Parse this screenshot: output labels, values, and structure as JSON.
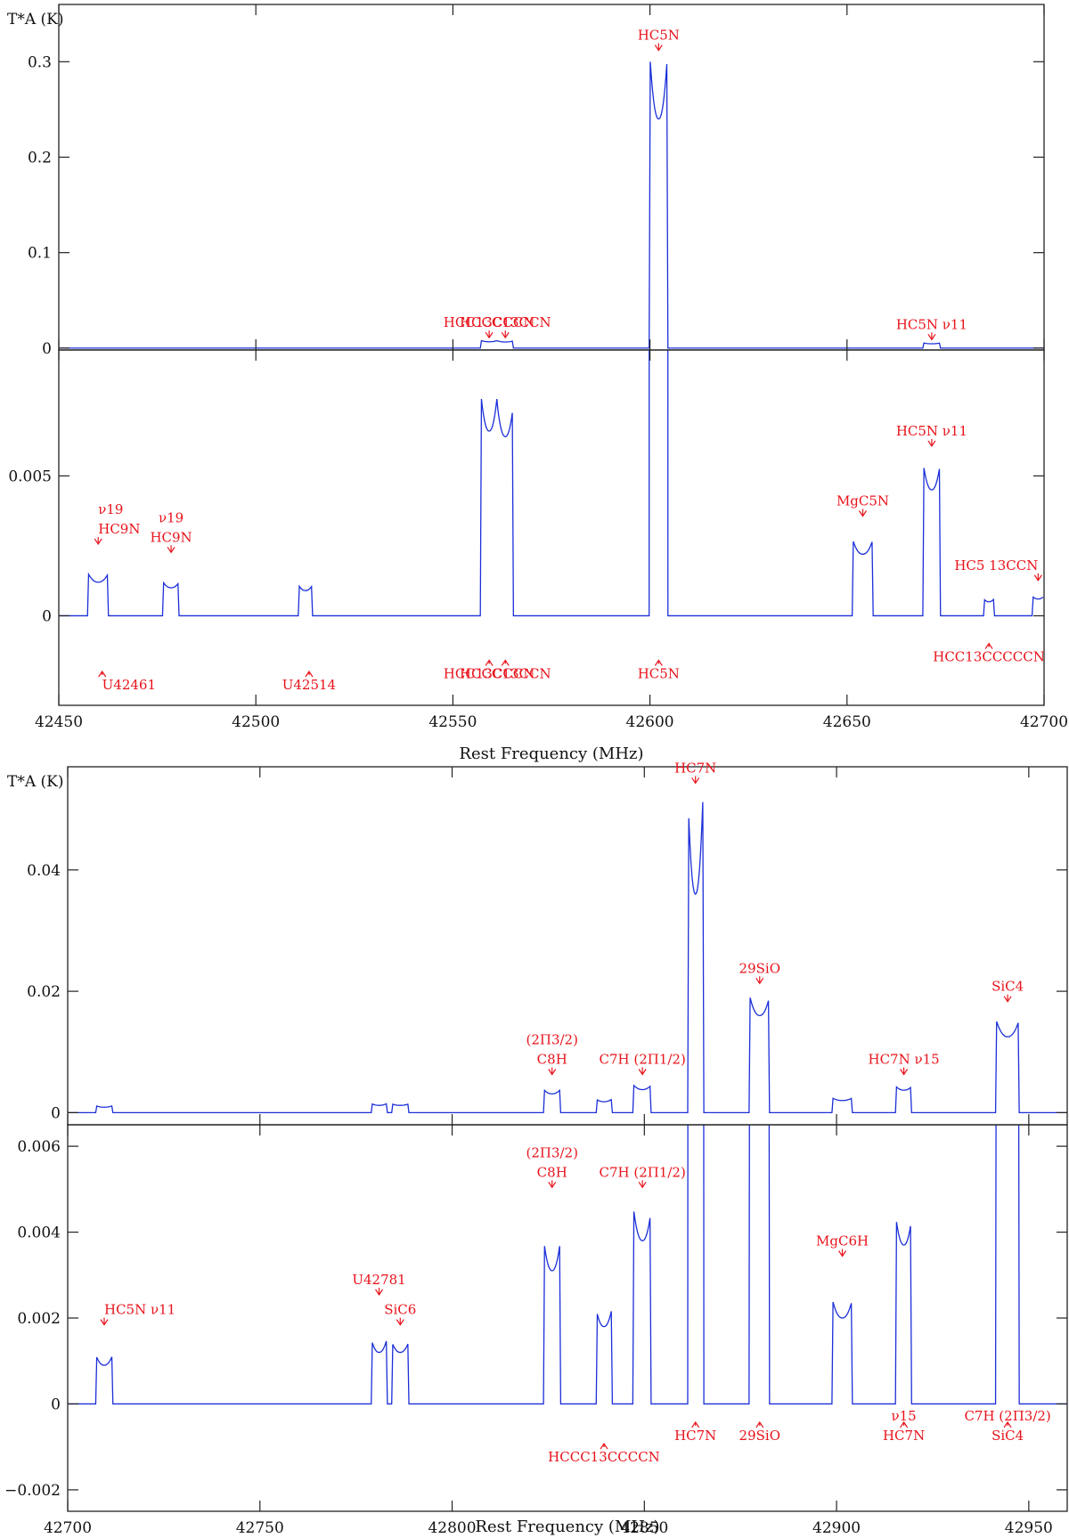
{
  "chart_data": [
    {
      "type": "line",
      "title": "",
      "xlabel": "Rest Frequency (MHz)",
      "ylabel": "T*A (K)",
      "xlim": [
        42450,
        42700
      ],
      "xticks": [
        "42450",
        "42500",
        "42550",
        "42600",
        "42650",
        "42700"
      ],
      "panels": [
        {
          "name": "upper",
          "ylim": [
            -0.002,
            0.36
          ],
          "yticks": [
            "0",
            "0.1",
            "0.2",
            "0.3"
          ],
          "lines": [
            {
              "name": "HC5N",
              "center": 42602.2,
              "width": 4.4,
              "peak": 0.305,
              "dip": 0.24
            },
            {
              "name": "HCC13CCCN",
              "center": 42559.2,
              "width": 4.0,
              "peak": 0.0078,
              "dip": 0.0066
            },
            {
              "name": "HCCC13CCN",
              "center": 42563.3,
              "width": 4.0,
              "peak": 0.0075,
              "dip": 0.0064
            },
            {
              "name": "HC5N v11",
              "center": 42671.5,
              "width": 4.0,
              "peak": 0.0053,
              "dip": 0.0045
            }
          ],
          "labels": [
            {
              "text": "HC5N",
              "x": 42602.2,
              "y": 0.31
            },
            {
              "text": "HCC13CCCN",
              "x": 42559.2,
              "y": 0.009
            },
            {
              "text": "HCCC13CCN",
              "x": 42563.3,
              "y": 0.009
            },
            {
              "text": "HC5N  ν11",
              "x": 42671.5,
              "y": 0.007
            }
          ]
        },
        {
          "name": "lower",
          "ylim": [
            -0.0032,
            0.0095
          ],
          "yticks": [
            "0",
            "0.005"
          ],
          "lines": [
            {
              "name": "HC9N v19",
              "center": 42460.0,
              "width": 5.0,
              "peak": 0.0015,
              "dip": 0.0012
            },
            {
              "name": "HC9N v19",
              "center": 42478.5,
              "width": 4.0,
              "peak": 0.0012,
              "dip": 0.001
            },
            {
              "name": "U42514",
              "center": 42512.6,
              "width": 3.5,
              "peak": 0.0011,
              "dip": 0.0009
            },
            {
              "name": "HCC13CCCN",
              "center": 42559.2,
              "width": 4.0,
              "peak": 0.0078,
              "dip": 0.0066
            },
            {
              "name": "HCCC13CCN",
              "center": 42563.3,
              "width": 4.0,
              "peak": 0.0075,
              "dip": 0.0064
            },
            {
              "name": "HC5N",
              "center": 42602.2,
              "width": 4.4,
              "peak": 0.305,
              "dip": 0.24
            },
            {
              "name": "MgC5N",
              "center": 42654.0,
              "width": 5.0,
              "peak": 0.0027,
              "dip": 0.0022
            },
            {
              "name": "HC5N v11",
              "center": 42671.5,
              "width": 4.0,
              "peak": 0.0053,
              "dip": 0.0045
            },
            {
              "name": "HCC13CCCCCN",
              "center": 42686.0,
              "width": 2.5,
              "peak": 0.0006,
              "dip": 0.0005
            },
            {
              "name": "HC5 13CCN",
              "center": 42698.5,
              "width": 3.0,
              "peak": 0.0007,
              "dip": 0.0006
            }
          ],
          "labels": [
            {
              "text": "HC9N",
              "x": 42460.0,
              "y": 0.0025
            },
            {
              "text": "ν19",
              "x": 42460.0,
              "y": 0.0025
            },
            {
              "text": "HC9N",
              "x": 42478.5,
              "y": 0.0022
            },
            {
              "text": "ν19",
              "x": 42478.5,
              "y": 0.0022
            },
            {
              "text": "U42461",
              "x": 42461.0,
              "y": -0.0018
            },
            {
              "text": "U42514",
              "x": 42513.5,
              "y": -0.0018
            },
            {
              "text": "HCC13CCCN",
              "x": 42559.2,
              "y": -0.0014
            },
            {
              "text": "HCCC13CCN",
              "x": 42563.3,
              "y": -0.0014
            },
            {
              "text": "HC5N",
              "x": 42602.2,
              "y": -0.0014
            },
            {
              "text": "MgC5N",
              "x": 42654.0,
              "y": 0.0035
            },
            {
              "text": "HC5N  ν11",
              "x": 42671.5,
              "y": 0.006
            },
            {
              "text": "HC5 13CCN",
              "x": 42698.5,
              "y": 0.0012
            },
            {
              "text": "HCC13CCCCCN",
              "x": 42686.0,
              "y": -0.0008
            }
          ]
        }
      ]
    },
    {
      "type": "line",
      "title": "",
      "xlabel": "Rest Frequency (MHz)",
      "ylabel": "T*A (K)",
      "xlim": [
        42700,
        42960
      ],
      "xticks": [
        "42700",
        "42750",
        "42800",
        "42850",
        "42900",
        "42950"
      ],
      "panels": [
        {
          "name": "upper",
          "ylim": [
            -0.002,
            0.057
          ],
          "yticks": [
            "0",
            "0.02",
            "0.04"
          ],
          "lines": [
            {
              "name": "HC5N v11",
              "center": 42709.5,
              "width": 4.0,
              "peak": 0.0011,
              "dip": 0.0009
            },
            {
              "name": "U42781",
              "center": 42781.0,
              "width": 4.0,
              "peak": 0.0015,
              "dip": 0.0012
            },
            {
              "name": "SiC6",
              "center": 42786.5,
              "width": 4.0,
              "peak": 0.0014,
              "dip": 0.0012
            },
            {
              "name": "C8H 2Π3/2",
              "center": 42826.0,
              "width": 4.0,
              "peak": 0.0037,
              "dip": 0.0031
            },
            {
              "name": "HCCC13CCCCN",
              "center": 42839.5,
              "width": 4.0,
              "peak": 0.0022,
              "dip": 0.0018
            },
            {
              "name": "C7H 2Π1/2",
              "center": 42849.5,
              "width": 4.5,
              "peak": 0.0045,
              "dip": 0.0038
            },
            {
              "name": "HC7N",
              "center": 42863.3,
              "width": 4.0,
              "peak": 0.053,
              "dip": 0.036
            },
            {
              "name": "29SiO",
              "center": 42880.0,
              "width": 5.0,
              "peak": 0.019,
              "dip": 0.016
            },
            {
              "name": "MgC6H",
              "center": 42901.5,
              "width": 5.0,
              "peak": 0.0024,
              "dip": 0.002
            },
            {
              "name": "HC7N v15",
              "center": 42917.5,
              "width": 4.0,
              "peak": 0.0043,
              "dip": 0.0037
            },
            {
              "name": "SiC4",
              "center": 42944.5,
              "width": 6.0,
              "peak": 0.0153,
              "dip": 0.0125
            }
          ],
          "labels": [
            {
              "text": "HC7N",
              "x": 42863.3,
              "y": 0.054
            },
            {
              "text": "29SiO",
              "x": 42880.0,
              "y": 0.021
            },
            {
              "text": "SiC4",
              "x": 42944.5,
              "y": 0.018
            },
            {
              "text": "HC7N  ν15",
              "x": 42917.5,
              "y": 0.006
            },
            {
              "text": "C8H",
              "x": 42826.0,
              "y": 0.006
            },
            {
              "text": "(2Π3/2)",
              "x": 42826.0,
              "y": 0.006
            },
            {
              "text": "C7H  (2Π1/2)",
              "x": 42849.5,
              "y": 0.006
            }
          ]
        },
        {
          "name": "lower",
          "ylim": [
            -0.0025,
            0.0065
          ],
          "yticks": [
            "-0.002",
            "0",
            "0.002",
            "0.004",
            "0.006"
          ],
          "lines": [
            {
              "name": "HC5N v11",
              "center": 42709.5,
              "width": 4.0,
              "peak": 0.0011,
              "dip": 0.0009
            },
            {
              "name": "U42781",
              "center": 42781.0,
              "width": 4.0,
              "peak": 0.0015,
              "dip": 0.0012
            },
            {
              "name": "SiC6",
              "center": 42786.5,
              "width": 4.0,
              "peak": 0.0014,
              "dip": 0.0012
            },
            {
              "name": "C8H 2Π3/2",
              "center": 42826.0,
              "width": 4.0,
              "peak": 0.0037,
              "dip": 0.0031
            },
            {
              "name": "HCCC13CCCCN",
              "center": 42839.5,
              "width": 4.0,
              "peak": 0.0022,
              "dip": 0.0018
            },
            {
              "name": "C7H 2Π1/2",
              "center": 42849.5,
              "width": 4.5,
              "peak": 0.0045,
              "dip": 0.0038
            },
            {
              "name": "HC7N",
              "center": 42863.3,
              "width": 4.0,
              "peak": 0.053,
              "dip": 0.036
            },
            {
              "name": "29SiO",
              "center": 42880.0,
              "width": 5.0,
              "peak": 0.019,
              "dip": 0.016
            },
            {
              "name": "MgC6H",
              "center": 42901.5,
              "width": 5.0,
              "peak": 0.0024,
              "dip": 0.002
            },
            {
              "name": "HC7N v15",
              "center": 42917.5,
              "width": 4.0,
              "peak": 0.0043,
              "dip": 0.0037
            },
            {
              "name": "SiC4",
              "center": 42944.5,
              "width": 6.0,
              "peak": 0.0153,
              "dip": 0.0125
            }
          ],
          "labels": [
            {
              "text": "HC5N  ν11",
              "x": 42709.5,
              "y": 0.0018
            },
            {
              "text": "U42781",
              "x": 42781.0,
              "y": 0.0025
            },
            {
              "text": "SiC6",
              "x": 42786.5,
              "y": 0.0018
            },
            {
              "text": "C8H",
              "x": 42826.0,
              "y": 0.005
            },
            {
              "text": "(2Π3/2)",
              "x": 42826.0,
              "y": 0.005
            },
            {
              "text": "C7H  (2Π1/2)",
              "x": 42849.5,
              "y": 0.005
            },
            {
              "text": "MgC6H",
              "x": 42901.5,
              "y": 0.0034
            },
            {
              "text": "HCCC13CCCCN",
              "x": 42839.5,
              "y": -0.0008
            },
            {
              "text": "HC7N",
              "x": 42863.3,
              "y": -0.0003
            },
            {
              "text": "29SiO",
              "x": 42880.0,
              "y": -0.0003
            },
            {
              "text": "HC7N",
              "x": 42917.5,
              "y": -0.0003
            },
            {
              "text": "ν15",
              "x": 42917.5,
              "y": -0.0003
            },
            {
              "text": "SiC4",
              "x": 42944.5,
              "y": -0.0003
            },
            {
              "text": "C7H  (2Π3/2)",
              "x": 42944.5,
              "y": -0.0003
            }
          ]
        }
      ]
    }
  ]
}
